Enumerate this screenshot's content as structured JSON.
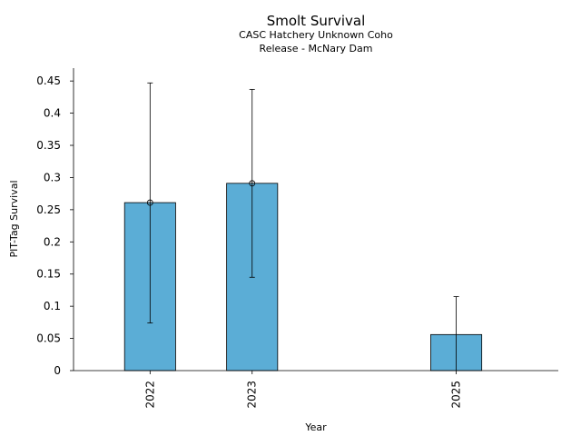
{
  "chart_data": {
    "type": "bar",
    "title": "Smolt Survival",
    "subtitle_line1": "CASC Hatchery Unknown Coho",
    "subtitle_line2": "Release - McNary Dam",
    "xlabel": "Year",
    "ylabel": "PIT-Tag Survival",
    "categories": [
      "2022",
      "2023",
      "2025"
    ],
    "x_positions": [
      2022,
      2023,
      2025
    ],
    "xlim": [
      2021.25,
      2026.0
    ],
    "values": [
      0.261,
      0.291,
      0.056
    ],
    "show_marker": [
      true,
      true,
      false
    ],
    "error_low": [
      0.074,
      0.145,
      null
    ],
    "error_high": [
      0.447,
      0.437,
      0.115
    ],
    "ylim": [
      0,
      0.47
    ],
    "yticks": [
      0,
      0.05,
      0.1,
      0.15,
      0.2,
      0.25,
      0.3,
      0.35,
      0.4,
      0.45
    ],
    "ytick_labels": [
      "0",
      "0.05",
      "0.1",
      "0.15",
      "0.2",
      "0.25",
      "0.3",
      "0.35",
      "0.4",
      "0.45"
    ],
    "bar_color": "#5badd6",
    "bar_edge_color": "#000000",
    "grid": false
  }
}
